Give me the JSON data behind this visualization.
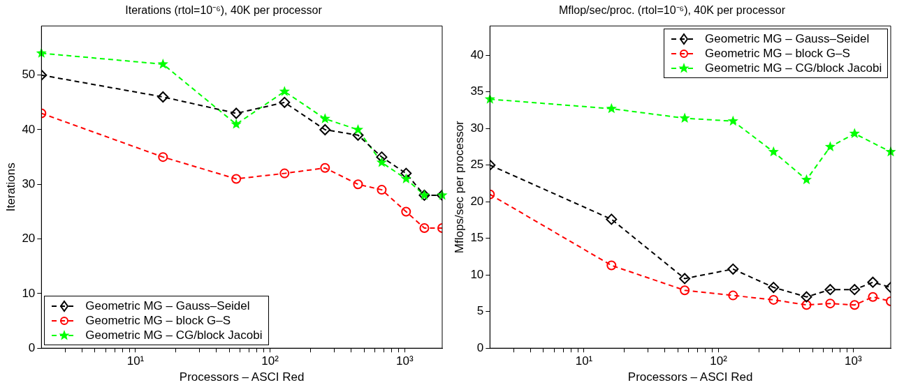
{
  "chart_data": [
    {
      "type": "line",
      "title": "Iterations (rtol=10⁻⁶), 40K per processor",
      "xlabel": "Processors – ASCI Red",
      "ylabel": "Iterations",
      "x": [
        2,
        16,
        56,
        128,
        256,
        450,
        675,
        1024,
        1400,
        1900
      ],
      "series": [
        {
          "name": "Geometric MG – Gauss–Seidel",
          "color": "#000000",
          "marker": "diamond",
          "values": [
            50,
            46,
            43,
            45,
            40,
            39,
            35,
            32,
            28,
            28
          ]
        },
        {
          "name": "Geometric MG – block G–S",
          "color": "#ff0000",
          "marker": "circle",
          "values": [
            43,
            35,
            31,
            32,
            33,
            30,
            29,
            25,
            22,
            22
          ]
        },
        {
          "name": "Geometric MG – CG/block Jacobi",
          "color": "#00ff00",
          "marker": "star",
          "values": [
            54,
            52,
            41,
            47,
            42,
            40,
            34,
            31,
            28,
            28
          ]
        }
      ],
      "log": "x",
      "xlim": [
        2,
        1900
      ],
      "ylim": [
        0,
        59
      ],
      "xticks": [
        {
          "value": 3,
          "label": null
        },
        {
          "value": 4,
          "label": null
        },
        {
          "value": 5,
          "label": null
        },
        {
          "value": 6,
          "label": null
        },
        {
          "value": 7,
          "label": null
        },
        {
          "value": 8,
          "label": null
        },
        {
          "value": 9,
          "label": null
        },
        {
          "value": 10,
          "label": "10¹"
        },
        {
          "value": 20,
          "label": null
        },
        {
          "value": 30,
          "label": null
        },
        {
          "value": 40,
          "label": null
        },
        {
          "value": 50,
          "label": null
        },
        {
          "value": 60,
          "label": null
        },
        {
          "value": 70,
          "label": null
        },
        {
          "value": 80,
          "label": null
        },
        {
          "value": 90,
          "label": null
        },
        {
          "value": 100,
          "label": "10²"
        },
        {
          "value": 200,
          "label": null
        },
        {
          "value": 300,
          "label": null
        },
        {
          "value": 400,
          "label": null
        },
        {
          "value": 500,
          "label": null
        },
        {
          "value": 600,
          "label": null
        },
        {
          "value": 700,
          "label": null
        },
        {
          "value": 800,
          "label": null
        },
        {
          "value": 900,
          "label": null
        },
        {
          "value": 1000,
          "label": "10³"
        }
      ],
      "yticks": [
        0,
        10,
        20,
        30,
        40,
        50
      ],
      "grid": false,
      "legend": "bottom left",
      "line_style": "dashed"
    },
    {
      "type": "line",
      "title": "Mflop/sec/proc. (rtol=10⁻⁶), 40K per processor",
      "xlabel": "Processors – ASCI Red",
      "ylabel": "Mflops/sec per processor",
      "x": [
        2,
        16,
        56,
        128,
        256,
        450,
        675,
        1024,
        1400,
        1900
      ],
      "series": [
        {
          "name": "Geometric MG – Gauss–Seidel",
          "color": "#000000",
          "marker": "diamond",
          "values": [
            25,
            17.6,
            9.5,
            10.8,
            8.3,
            7.0,
            8.0,
            8.0,
            9.0,
            8.3
          ]
        },
        {
          "name": "Geometric MG – block G–S",
          "color": "#ff0000",
          "marker": "circle",
          "values": [
            21,
            11.3,
            7.9,
            7.2,
            6.6,
            5.9,
            6.1,
            5.9,
            7.0,
            6.4
          ]
        },
        {
          "name": "Geometric MG – CG/block Jacobi",
          "color": "#00ff00",
          "marker": "star",
          "values": [
            34,
            32.7,
            31.4,
            31,
            26.8,
            23,
            27.5,
            29.3,
            null,
            26.8
          ]
        }
      ],
      "log": "x",
      "xlim": [
        2,
        1900
      ],
      "ylim": [
        0,
        44
      ],
      "xticks": [
        {
          "value": 3,
          "label": null
        },
        {
          "value": 4,
          "label": null
        },
        {
          "value": 5,
          "label": null
        },
        {
          "value": 6,
          "label": null
        },
        {
          "value": 7,
          "label": null
        },
        {
          "value": 8,
          "label": null
        },
        {
          "value": 9,
          "label": null
        },
        {
          "value": 10,
          "label": "10¹"
        },
        {
          "value": 20,
          "label": null
        },
        {
          "value": 30,
          "label": null
        },
        {
          "value": 40,
          "label": null
        },
        {
          "value": 50,
          "label": null
        },
        {
          "value": 60,
          "label": null
        },
        {
          "value": 70,
          "label": null
        },
        {
          "value": 80,
          "label": null
        },
        {
          "value": 90,
          "label": null
        },
        {
          "value": 100,
          "label": "10²"
        },
        {
          "value": 200,
          "label": null
        },
        {
          "value": 300,
          "label": null
        },
        {
          "value": 400,
          "label": null
        },
        {
          "value": 500,
          "label": null
        },
        {
          "value": 600,
          "label": null
        },
        {
          "value": 700,
          "label": null
        },
        {
          "value": 800,
          "label": null
        },
        {
          "value": 900,
          "label": null
        },
        {
          "value": 1000,
          "label": "10³"
        }
      ],
      "yticks": [
        0,
        5,
        10,
        15,
        20,
        25,
        30,
        35,
        40
      ],
      "grid": false,
      "legend": "top right",
      "line_style": "dashed"
    }
  ]
}
